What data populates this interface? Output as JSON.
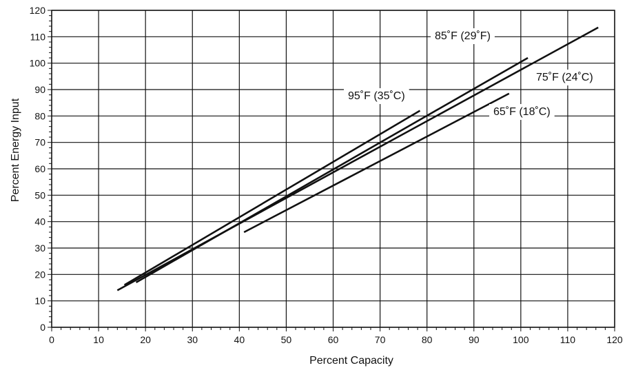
{
  "chart_data": {
    "type": "line",
    "xlabel": "Percent Capacity",
    "ylabel": "Percent Energy Input",
    "xlim": [
      0,
      120
    ],
    "ylim": [
      0,
      120
    ],
    "x_ticks": [
      0,
      10,
      20,
      30,
      40,
      50,
      60,
      70,
      80,
      90,
      100,
      110,
      120
    ],
    "y_ticks": [
      0,
      10,
      20,
      30,
      40,
      50,
      60,
      70,
      80,
      90,
      100,
      110,
      120
    ],
    "grid": true,
    "series": [
      {
        "name": "95˚F (35˚C)",
        "x": [
          15.5,
          78.5
        ],
        "y": [
          16,
          82
        ]
      },
      {
        "name": "85˚F (29˚F)",
        "x": [
          14,
          116.5
        ],
        "y": [
          14,
          113.5
        ]
      },
      {
        "name": "75˚F (24˚C)",
        "x": [
          18,
          101.5
        ],
        "y": [
          17,
          102
        ]
      },
      {
        "name": "65˚F (18˚C)",
        "x": [
          41,
          97.5
        ],
        "y": [
          36,
          88.5
        ]
      }
    ]
  }
}
